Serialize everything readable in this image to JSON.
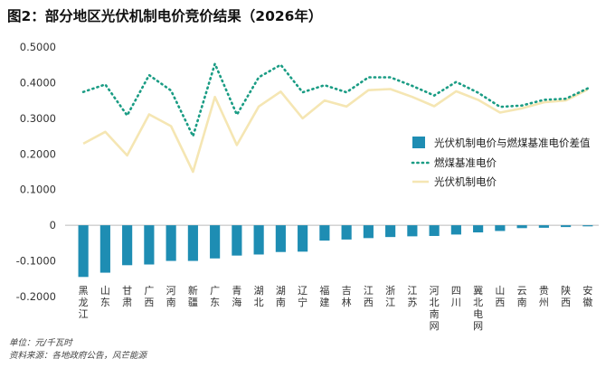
{
  "title": "图2：部分地区光伏机制电价竞价结果（2026年）",
  "footnotes": {
    "unit": "单位：元/千瓦时",
    "source": "资料来源：各地政府公告，风芒能源"
  },
  "colors": {
    "bar": "#1e8db3",
    "dotted": "#1a9c84",
    "line": "#f5e6b3",
    "axis": "#bbbbbb"
  },
  "chart_data": {
    "type": "bar",
    "categories": [
      "黑龙江",
      "山东",
      "甘肃",
      "广西",
      "河南",
      "新疆",
      "广东",
      "青海",
      "湖北",
      "湖南",
      "辽宁",
      "福建",
      "吉林",
      "江西",
      "浙江",
      "江苏",
      "河北南网",
      "四川",
      "冀北电网",
      "山西",
      "云南",
      "贵州",
      "陕西",
      "安徽"
    ],
    "label_chars": [
      [
        "黑",
        "龙",
        "江"
      ],
      [
        "山",
        "东"
      ],
      [
        "甘",
        "肃"
      ],
      [
        "广",
        "西"
      ],
      [
        "河",
        "南"
      ],
      [
        "新",
        "疆"
      ],
      [
        "广",
        "东"
      ],
      [
        "青",
        "海"
      ],
      [
        "湖",
        "北"
      ],
      [
        "湖",
        "南"
      ],
      [
        "辽",
        "宁"
      ],
      [
        "福",
        "建"
      ],
      [
        "吉",
        "林"
      ],
      [
        "江",
        "西"
      ],
      [
        "浙",
        "江"
      ],
      [
        "江",
        "苏"
      ],
      [
        "河",
        "北",
        "南",
        "网"
      ],
      [
        "四",
        "川"
      ],
      [
        "冀",
        "北",
        "电",
        "网"
      ],
      [
        "山",
        "西"
      ],
      [
        "云",
        "南"
      ],
      [
        "贵",
        "州"
      ],
      [
        "陕",
        "西"
      ],
      [
        "安",
        "徽"
      ]
    ],
    "series": [
      {
        "name": "光伏机制电价与燃煤基准电价差值",
        "type": "bar",
        "values": [
          -0.145,
          -0.133,
          -0.112,
          -0.11,
          -0.1,
          -0.1,
          -0.093,
          -0.085,
          -0.082,
          -0.075,
          -0.074,
          -0.043,
          -0.04,
          -0.036,
          -0.033,
          -0.031,
          -0.03,
          -0.026,
          -0.02,
          -0.016,
          -0.008,
          -0.007,
          -0.005,
          -0.003
        ]
      },
      {
        "name": "燃煤基准电价",
        "type": "dotted-line",
        "values": [
          0.374,
          0.395,
          0.308,
          0.421,
          0.378,
          0.25,
          0.453,
          0.31,
          0.415,
          0.45,
          0.373,
          0.393,
          0.373,
          0.415,
          0.415,
          0.391,
          0.364,
          0.402,
          0.372,
          0.332,
          0.336,
          0.352,
          0.355,
          0.384
        ]
      },
      {
        "name": "光伏机制电价",
        "type": "line",
        "values": [
          0.229,
          0.262,
          0.196,
          0.311,
          0.278,
          0.15,
          0.36,
          0.225,
          0.333,
          0.375,
          0.3,
          0.35,
          0.333,
          0.379,
          0.382,
          0.36,
          0.334,
          0.376,
          0.352,
          0.316,
          0.328,
          0.345,
          0.35,
          0.381
        ]
      }
    ],
    "ylim": [
      -0.2,
      0.5
    ],
    "yticks": [
      "0.5000",
      "0.4000",
      "0.3000",
      "0.2000",
      "0.1000",
      "0",
      "-0.1000",
      "-0.2000"
    ],
    "ytick_values": [
      0.5,
      0.4,
      0.3,
      0.2,
      0.1,
      0,
      -0.1,
      -0.2
    ],
    "legend_position": "right"
  }
}
